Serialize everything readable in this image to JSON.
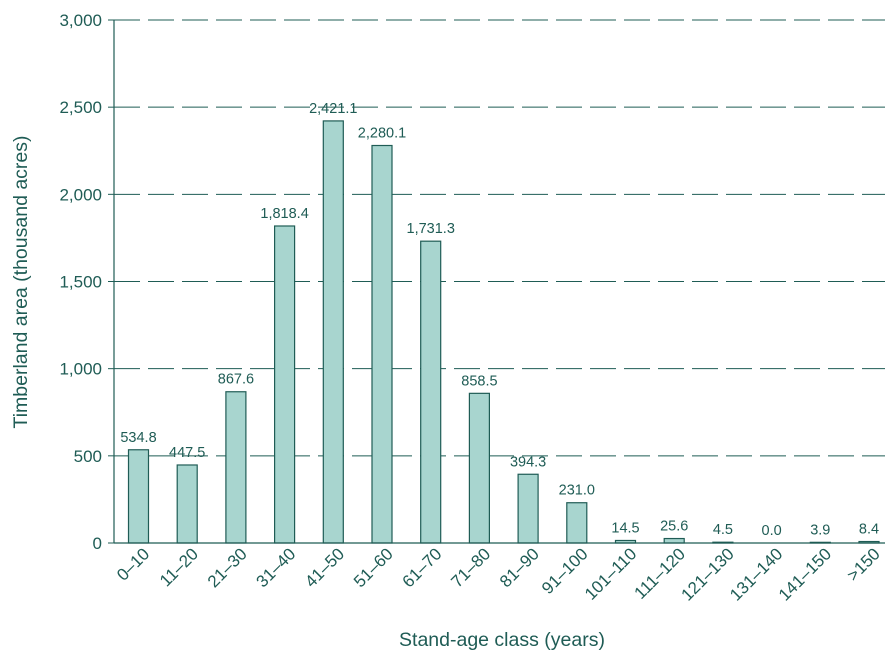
{
  "colors": {
    "text": "#1f5c55",
    "bar_fill": "#a8d5cf",
    "bar_stroke": "#1f5c55",
    "grid": "#1f5c55",
    "axis": "#1f5c55"
  },
  "chart_data": {
    "type": "bar",
    "title": "",
    "xlabel": "Stand-age class (years)",
    "ylabel": "Timberland area (thousand acres)",
    "ylim": [
      0,
      3000
    ],
    "yticks": [
      0,
      500,
      1000,
      1500,
      2000,
      2500,
      3000
    ],
    "ytick_labels": [
      "0",
      "500",
      "1,000",
      "1,500",
      "2,000",
      "2,500",
      "3,000"
    ],
    "grid": "horizontal dashed",
    "legend": "none",
    "categories": [
      "0–10",
      "11–20",
      "21–30",
      "31–40",
      "41–50",
      "51–60",
      "61–70",
      "71–80",
      "81–90",
      "91–100",
      "101–110",
      "111–120",
      "121–130",
      "131–140",
      "141–150",
      ">150"
    ],
    "values": [
      534.8,
      447.5,
      867.6,
      1818.4,
      2421.1,
      2280.1,
      1731.3,
      858.5,
      394.3,
      231.0,
      14.5,
      25.6,
      4.5,
      0.0,
      3.9,
      8.4
    ],
    "value_labels": [
      "534.8",
      "447.5",
      "867.6",
      "1,818.4",
      "2,421.1",
      "2,280.1",
      "1,731.3",
      "858.5",
      "394.3",
      "231.0",
      "14.5",
      "25.6",
      "4.5",
      "0.0",
      "3.9",
      "8.4"
    ]
  }
}
